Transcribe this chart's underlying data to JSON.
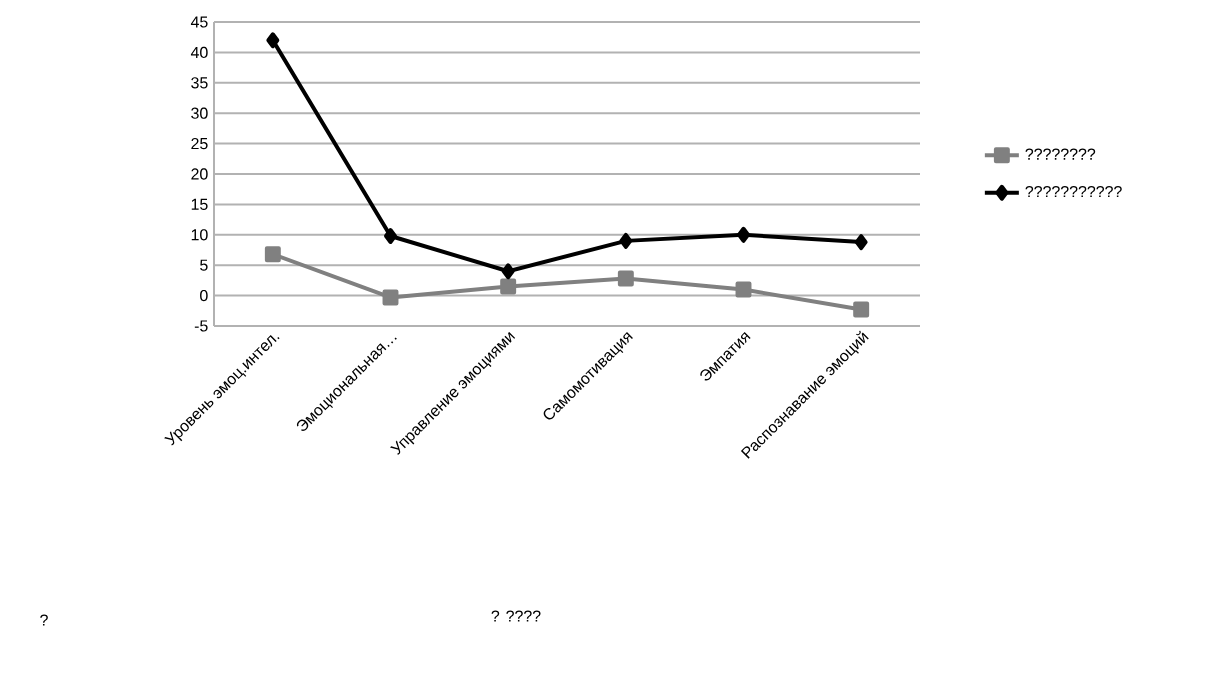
{
  "chart_data": {
    "type": "line",
    "annotations": [
      "?",
      "? ????"
    ],
    "categories": [
      "Уровень эмоц.интел.",
      "Эмоциональная…",
      "Управление эмоциями",
      "Самомотивация",
      "Эмпатия",
      "Распознавание эмоций"
    ],
    "series": [
      {
        "name": "????????",
        "color": "#808080",
        "marker": "square",
        "values": [
          6.8,
          -0.3,
          1.5,
          2.8,
          1,
          -2.3
        ]
      },
      {
        "name": "???????????",
        "color": "#000000",
        "marker": "diamond",
        "values": [
          42,
          9.8,
          4,
          9,
          10,
          8.8
        ]
      }
    ],
    "ylim": [
      -5,
      45
    ],
    "yticks": [
      -5,
      0,
      5,
      10,
      15,
      20,
      25,
      30,
      35,
      40,
      45
    ],
    "grid": "y",
    "legend": "right",
    "line_style": "solid"
  }
}
